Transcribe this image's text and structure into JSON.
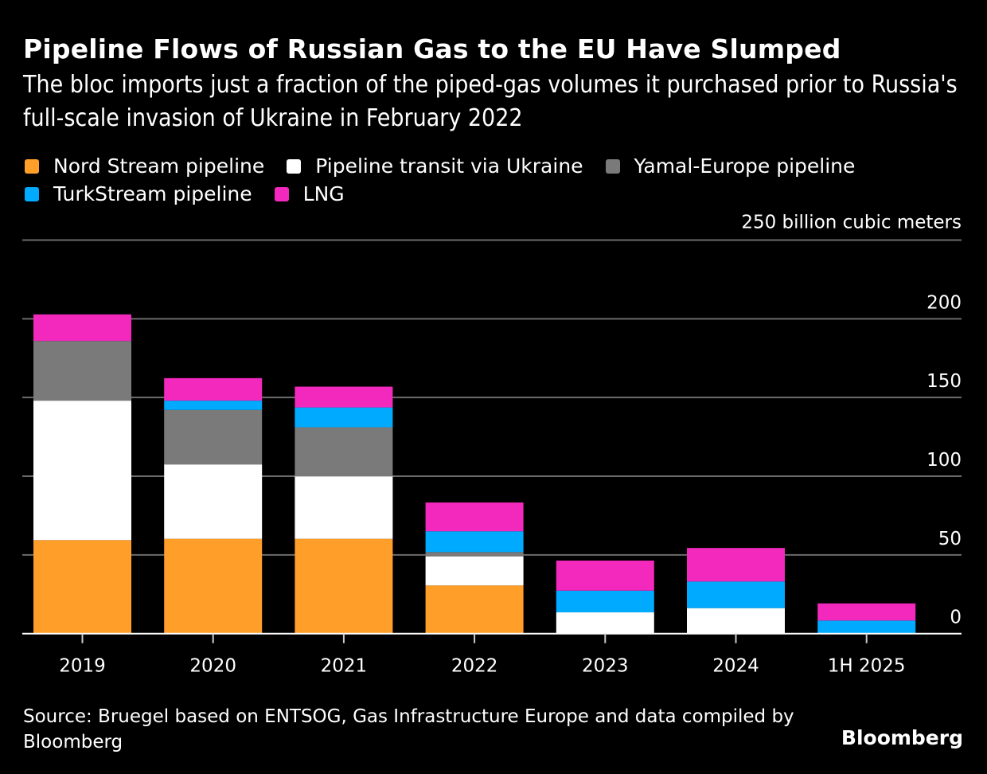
{
  "header": {
    "title": "Pipeline Flows of Russian Gas to the EU Have Slumped",
    "subtitle": "The bloc imports just a fraction of the piped-gas volumes it purchased prior to Russia's full-scale invasion of Ukraine in February 2022"
  },
  "legend": {
    "row1": [
      {
        "label": "Nord Stream pipeline",
        "color": "#FF9E29"
      },
      {
        "label": "Pipeline transit via Ukraine",
        "color": "#FFFFFF"
      },
      {
        "label": "Yamal-Europe pipeline",
        "color": "#7A7A7A"
      }
    ],
    "row2": [
      {
        "label": "TurkStream pipeline",
        "color": "#00AAFF"
      },
      {
        "label": "LNG",
        "color": "#F229BC"
      }
    ]
  },
  "footer": {
    "source": "Source: Bruegel based on ENTSOG, Gas Infrastructure Europe and data compiled by Bloomberg",
    "brand": "Bloomberg"
  },
  "chart_data": {
    "type": "bar",
    "stacked": true,
    "title": "Pipeline Flows of Russian Gas to the EU Have Slumped",
    "subtitle": "The bloc imports just a fraction of the piped-gas volumes it purchased prior to Russia's full-scale invasion of Ukraine in February 2022",
    "xlabel": "",
    "ylabel": "billion cubic meters",
    "unit_label": "250 billion cubic meters",
    "categories": [
      "2019",
      "2020",
      "2021",
      "2022",
      "2023",
      "2024",
      "1H 2025"
    ],
    "series": [
      {
        "name": "Nord Stream pipeline",
        "color": "#FF9E29",
        "values": [
          59.4,
          60.2,
          60.2,
          30.6,
          0,
          0,
          0
        ]
      },
      {
        "name": "Pipeline transit via Ukraine",
        "color": "#FFFFFF",
        "values": [
          88.6,
          47.3,
          39.7,
          18.5,
          13.5,
          16.2,
          0
        ]
      },
      {
        "name": "Yamal-Europe pipeline",
        "color": "#7A7A7A",
        "values": [
          37.9,
          34.6,
          31.2,
          2.7,
          0,
          0,
          0
        ]
      },
      {
        "name": "TurkStream pipeline",
        "color": "#00AAFF",
        "values": [
          0,
          5.9,
          12.6,
          13.2,
          13.8,
          16.9,
          8.3
        ]
      },
      {
        "name": "LNG",
        "color": "#F229BC",
        "values": [
          16.9,
          14.3,
          13.2,
          18.3,
          19.1,
          21.3,
          10.9
        ]
      }
    ],
    "ylim": [
      0,
      250
    ],
    "yticks": [
      0,
      50,
      100,
      150,
      200,
      250
    ],
    "ytick_labels": [
      "0",
      "50",
      "100",
      "150",
      "200",
      "250 billion cubic meters"
    ],
    "grid": true,
    "legend_position": "top",
    "yaxis_position": "right"
  }
}
